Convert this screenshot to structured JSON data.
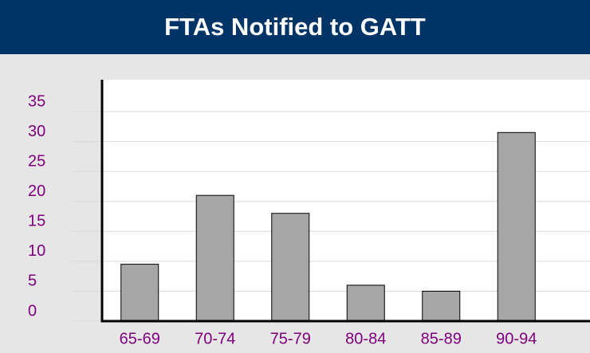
{
  "chart_data": {
    "type": "bar",
    "title": "FTAs Notified to GATT",
    "categories": [
      "65-69",
      "70-74",
      "75-79",
      "80-84",
      "85-89",
      "90-94"
    ],
    "values": [
      9.5,
      21,
      18,
      6,
      5,
      31.5
    ],
    "color": "#a6a6a6",
    "ylim": [
      0,
      35
    ],
    "yticks": [
      0,
      5,
      10,
      15,
      20,
      25,
      30,
      35
    ],
    "grid": true
  }
}
